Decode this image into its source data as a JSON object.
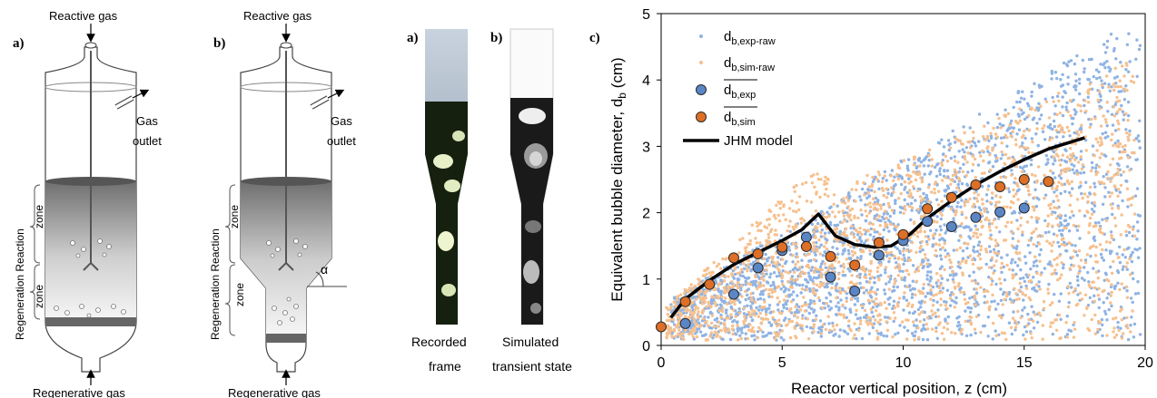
{
  "panels": {
    "reactor_a": {
      "label": "a)",
      "top_gas": "Reactive gas",
      "bottom_gas": "Regenerative gas",
      "outlet_line1": "Gas",
      "outlet_line2": "outlet",
      "zone_upper": "zone",
      "zone_lower": "zone",
      "side_label": "Regeneration Reaction"
    },
    "reactor_b": {
      "label": "b)",
      "top_gas": "Reactive gas",
      "bottom_gas": "Regenerative gas",
      "outlet_line1": "Gas",
      "outlet_line2": "outlet",
      "zone_upper": "zone",
      "zone_lower": "zone",
      "side_label": "Regeneration Reaction",
      "angle_label": "α"
    },
    "frames": {
      "label_a": "a)",
      "label_b": "b)",
      "recorded_line1": "Recorded",
      "recorded_line2": "frame",
      "simulated_line1": "Simulated",
      "simulated_line2": "transient state"
    },
    "chart_label": "c)"
  },
  "colors": {
    "exp_raw": "#8fb3e3",
    "sim_raw": "#f6c08e",
    "exp_mean": "#5b86c6",
    "sim_mean": "#de6f27",
    "model": "#000000"
  },
  "chart_data": {
    "type": "scatter",
    "xlabel": "Reactor vertical position, z (cm)",
    "ylabel": "Equivalent bubble diameter, d",
    "ylabel_sub": "b",
    "ylabel_unit": " (cm)",
    "xlim": [
      0,
      20
    ],
    "ylim": [
      0,
      5
    ],
    "x_ticks": [
      0,
      5,
      10,
      15,
      20
    ],
    "y_ticks": [
      0,
      1,
      2,
      3,
      4,
      5
    ],
    "grid": false,
    "legend_position": "top-left",
    "legend": [
      {
        "key": "exp_raw",
        "base": "d",
        "sub": "b,exp-raw",
        "overline": false
      },
      {
        "key": "sim_raw",
        "base": "d",
        "sub": "b,sim-raw",
        "overline": false
      },
      {
        "key": "exp_mean",
        "base": "d",
        "sub": "b,exp",
        "overline": true
      },
      {
        "key": "sim_mean",
        "base": "d",
        "sub": "b,sim",
        "overline": true
      },
      {
        "key": "model",
        "text": "JHM model"
      }
    ],
    "series": [
      {
        "key": "exp_mean",
        "x": [
          1,
          3,
          4,
          5,
          6,
          7,
          8,
          9,
          10,
          11,
          12,
          13,
          14,
          15
        ],
        "y": [
          0.33,
          0.77,
          1.17,
          1.43,
          1.63,
          1.03,
          0.82,
          1.36,
          1.58,
          1.87,
          1.79,
          1.93,
          2.01,
          2.07
        ]
      },
      {
        "key": "sim_mean",
        "x": [
          0,
          1,
          2,
          3,
          4,
          5,
          6,
          7,
          8,
          9,
          10,
          11,
          12,
          13,
          14,
          15,
          16
        ],
        "y": [
          0.28,
          0.66,
          0.92,
          1.32,
          1.38,
          1.48,
          1.49,
          1.34,
          1.21,
          1.55,
          1.67,
          2.06,
          2.23,
          2.42,
          2.39,
          2.5,
          2.47
        ]
      },
      {
        "key": "model",
        "x": [
          0.4,
          1,
          2,
          3,
          4,
          5,
          5.8,
          6.5,
          7.2,
          8,
          8.8,
          9.5,
          10.3,
          11,
          12,
          13,
          14,
          15,
          16,
          17.5
        ],
        "y": [
          0.42,
          0.7,
          0.98,
          1.22,
          1.4,
          1.58,
          1.74,
          1.98,
          1.65,
          1.52,
          1.48,
          1.5,
          1.68,
          1.92,
          2.18,
          2.42,
          2.62,
          2.8,
          2.96,
          3.13
        ]
      }
    ],
    "raw_clouds": {
      "exp_raw": {
        "count": 2300,
        "x_range": [
          0.4,
          19.8
        ],
        "seed": 7
      },
      "sim_raw": {
        "count": 1900,
        "x_range": [
          0.2,
          19.6
        ],
        "seed": 13
      }
    }
  }
}
